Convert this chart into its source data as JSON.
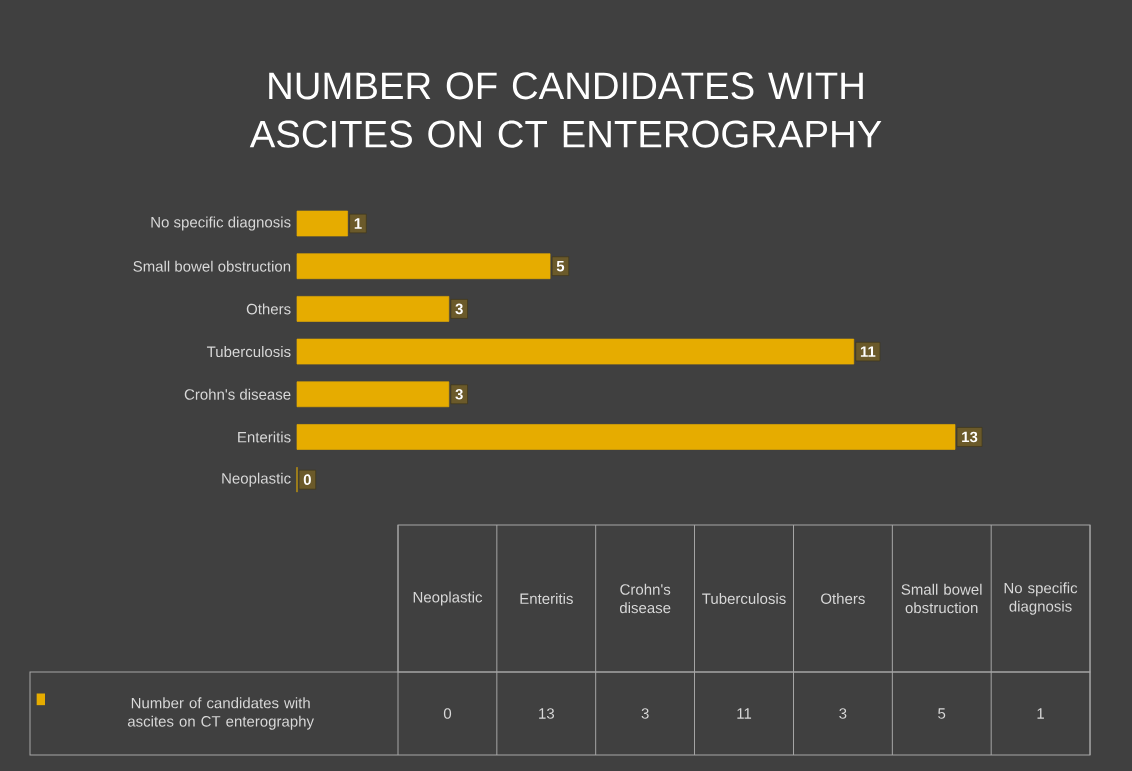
{
  "chart_data": {
    "type": "bar",
    "orientation": "horizontal",
    "title": "NUMBER OF CANDIDATES WITH ASCITES ON CT ENTEROGRAPHY",
    "categories": [
      "No specific diagnosis",
      "Small bowel obstruction",
      "Others",
      "Tuberculosis",
      "Crohn's disease",
      "Enteritis",
      "Neoplastic"
    ],
    "series": [
      {
        "name": "Number of candidates with ascites on CT enterography",
        "color": "#e6ac00",
        "values": [
          1,
          5,
          3,
          11,
          3,
          13,
          0
        ],
        "value_labels": [
          "1",
          "5",
          "3",
          "11",
          "3",
          "13",
          "0"
        ]
      }
    ]
  }
}
